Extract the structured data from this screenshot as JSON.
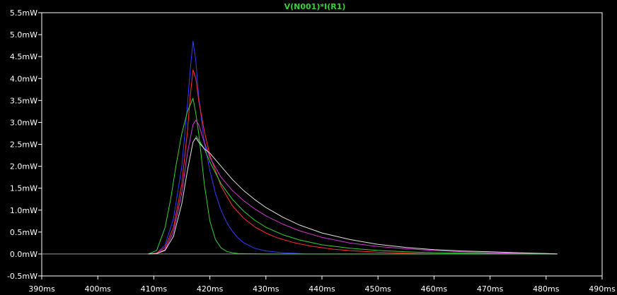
{
  "chart_data": {
    "type": "line",
    "title": "V(N001)*I(R1)",
    "title_color": "#38d038",
    "background": "#000000",
    "axis_color": "#ffffff",
    "grid": false,
    "xlim": [
      390,
      490
    ],
    "ylim": [
      -0.5,
      5.5
    ],
    "x_ticks": [
      390,
      400,
      410,
      420,
      430,
      440,
      450,
      460,
      470,
      480,
      490
    ],
    "x_tick_labels": [
      "390ms",
      "400ms",
      "410ms",
      "420ms",
      "430ms",
      "440ms",
      "450ms",
      "460ms",
      "470ms",
      "480ms",
      "490ms"
    ],
    "y_ticks": [
      -0.5,
      0.0,
      0.5,
      1.0,
      1.5,
      2.0,
      2.5,
      3.0,
      3.5,
      4.0,
      4.5,
      5.0,
      5.5
    ],
    "y_tick_labels": [
      "-0.5mW",
      "0.0mW",
      "0.5mW",
      "1.0mW",
      "1.5mW",
      "2.0mW",
      "2.5mW",
      "3.0mW",
      "3.5mW",
      "4.0mW",
      "4.5mW",
      "5.0mW",
      "5.5mW"
    ],
    "baseline": {
      "x": [
        390,
        482
      ],
      "y": [
        0,
        0
      ],
      "color": "#9a9a9a"
    },
    "series": [
      {
        "color": "#3838ff",
        "x": [
          409,
          410.5,
          412,
          413.5,
          415,
          416,
          416.5,
          417,
          417.5,
          418,
          419,
          420,
          421,
          422,
          423,
          424,
          425,
          426,
          428,
          430,
          433,
          436,
          437
        ],
        "y": [
          0,
          0.02,
          0.2,
          0.8,
          2.0,
          3.4,
          4.2,
          4.85,
          4.4,
          3.6,
          2.55,
          1.9,
          1.38,
          1.0,
          0.72,
          0.52,
          0.37,
          0.26,
          0.13,
          0.07,
          0.03,
          0.01,
          0
        ]
      },
      {
        "color": "#ff3030",
        "x": [
          409,
          410.5,
          412,
          413.5,
          415,
          416,
          416.5,
          417,
          417.5,
          418,
          419,
          420,
          422,
          424,
          426,
          428,
          430,
          432,
          435,
          438,
          442,
          446,
          450,
          455,
          460
        ],
        "y": [
          0,
          0.02,
          0.15,
          0.6,
          1.6,
          2.8,
          3.6,
          4.2,
          4.0,
          3.5,
          2.8,
          2.25,
          1.55,
          1.1,
          0.82,
          0.62,
          0.48,
          0.37,
          0.26,
          0.18,
          0.11,
          0.07,
          0.04,
          0.02,
          0
        ]
      },
      {
        "color": "#38d038",
        "x": [
          409,
          410.5,
          412,
          413,
          414,
          415,
          416,
          416.5,
          417,
          417.5,
          418,
          418.5,
          419,
          420,
          421,
          422,
          423,
          424,
          425,
          430,
          440,
          450,
          460,
          470,
          480,
          482
        ],
        "y": [
          0,
          0.08,
          0.6,
          1.25,
          2.05,
          2.75,
          3.25,
          3.4,
          3.55,
          3.2,
          2.75,
          2.2,
          1.6,
          0.75,
          0.33,
          0.14,
          0.06,
          0.03,
          0.01,
          0,
          0,
          0,
          0,
          0,
          0,
          0
        ]
      },
      {
        "color": "#38d038",
        "x": [
          417.5,
          418,
          419,
          420,
          421,
          422,
          424,
          426,
          428,
          430,
          433,
          436,
          440,
          445,
          450,
          455,
          460,
          470,
          478
        ],
        "y": [
          2.7,
          2.6,
          2.4,
          2.1,
          1.85,
          1.6,
          1.25,
          0.98,
          0.77,
          0.61,
          0.44,
          0.32,
          0.21,
          0.13,
          0.08,
          0.05,
          0.03,
          0.01,
          0
        ]
      },
      {
        "color": "#d038d0",
        "x": [
          409,
          410.5,
          412,
          413.5,
          415,
          416,
          417,
          417.5,
          418,
          419,
          420,
          422,
          424,
          426,
          428,
          430,
          433,
          436,
          440,
          445,
          450,
          455,
          460,
          465,
          470,
          475,
          480,
          482
        ],
        "y": [
          0,
          0.01,
          0.1,
          0.5,
          1.4,
          2.3,
          2.95,
          3.05,
          2.95,
          2.55,
          2.2,
          1.75,
          1.45,
          1.22,
          1.03,
          0.87,
          0.68,
          0.53,
          0.38,
          0.25,
          0.17,
          0.12,
          0.08,
          0.05,
          0.03,
          0.02,
          0.01,
          0
        ]
      },
      {
        "color": "#e0e0e0",
        "x": [
          409,
          410.5,
          412,
          413.5,
          415,
          416,
          417,
          417.5,
          418,
          419,
          420,
          422,
          424,
          426,
          428,
          430,
          433,
          436,
          440,
          445,
          450,
          455,
          460,
          465,
          470,
          475,
          480,
          482
        ],
        "y": [
          0,
          0.01,
          0.08,
          0.4,
          1.15,
          1.9,
          2.55,
          2.65,
          2.55,
          2.4,
          2.3,
          2.0,
          1.7,
          1.45,
          1.24,
          1.06,
          0.84,
          0.66,
          0.48,
          0.33,
          0.22,
          0.15,
          0.1,
          0.07,
          0.05,
          0.03,
          0.01,
          0
        ]
      }
    ]
  }
}
